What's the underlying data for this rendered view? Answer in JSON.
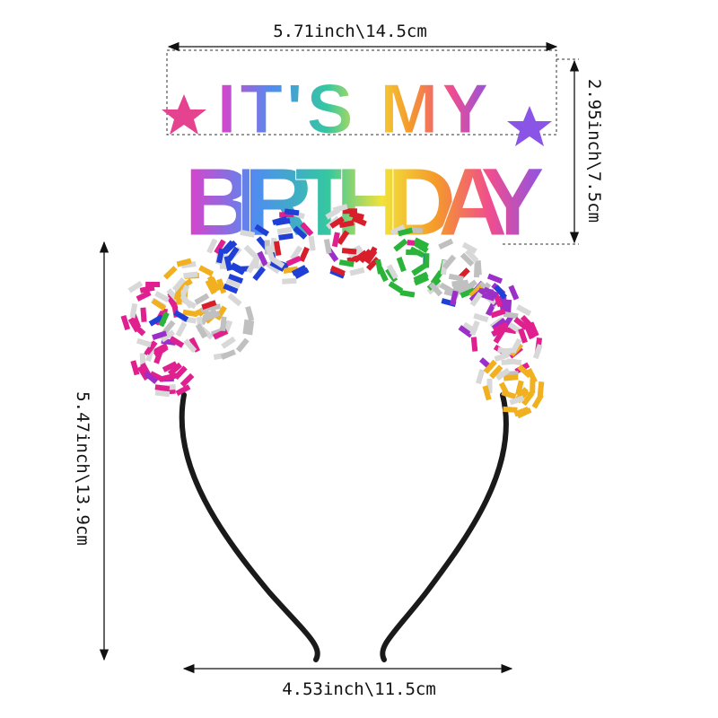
{
  "product": {
    "headband_text_line1": "IT'S MY",
    "headband_text_line2": "BIRTHDAY",
    "tinsel_colors": [
      "#e0208f",
      "#f0b020",
      "#1f3fd6",
      "#d81e2a",
      "#2bb43a",
      "#c0c0c0",
      "#9b2fc8"
    ],
    "band_color": "#1a1a1a"
  },
  "dimensions": {
    "top_width": "5.71inch\\14.5cm",
    "sign_height": "2.95inch\\7.5cm",
    "total_height": "5.47inch\\13.9cm",
    "bottom_width": "4.53inch\\11.5cm"
  }
}
